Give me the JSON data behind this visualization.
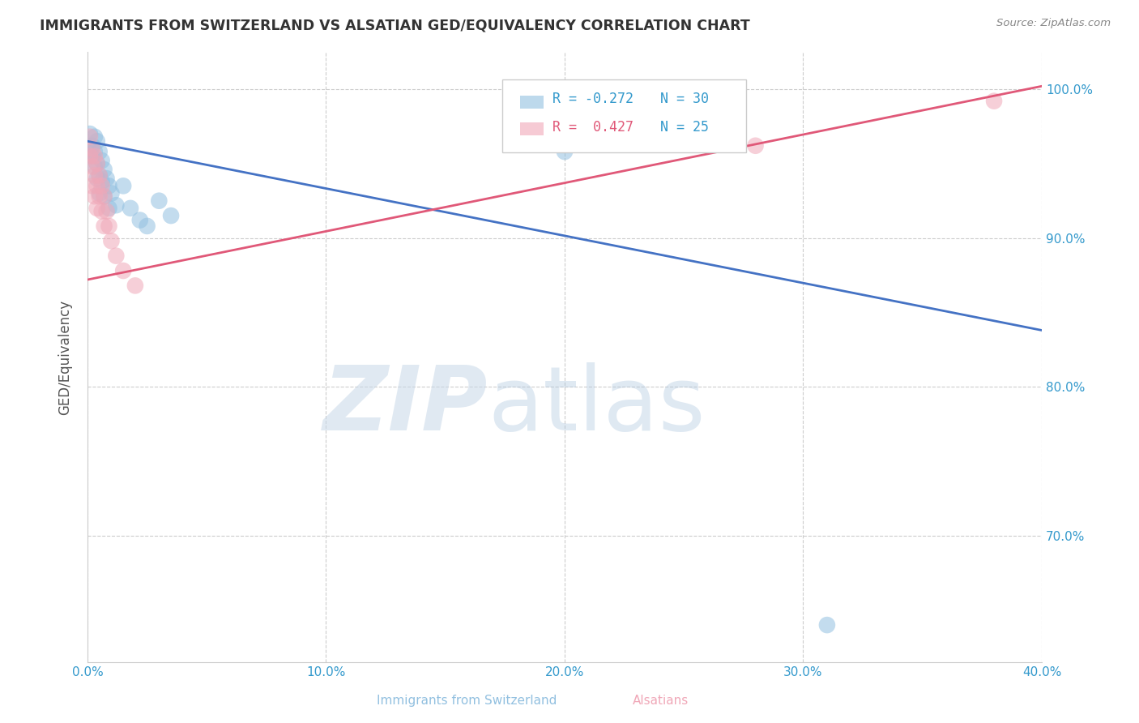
{
  "title": "IMMIGRANTS FROM SWITZERLAND VS ALSATIAN GED/EQUIVALENCY CORRELATION CHART",
  "source_text": "Source: ZipAtlas.com",
  "ylabel": "GED/Equivalency",
  "xlim": [
    0.0,
    0.4
  ],
  "ylim": [
    0.615,
    1.025
  ],
  "xtick_labels": [
    "0.0%",
    "",
    "10.0%",
    "",
    "20.0%",
    "",
    "30.0%",
    "",
    "40.0%"
  ],
  "xtick_values": [
    0.0,
    0.05,
    0.1,
    0.15,
    0.2,
    0.25,
    0.3,
    0.35,
    0.4
  ],
  "ytick_labels": [
    "100.0%",
    "90.0%",
    "80.0%",
    "70.0%"
  ],
  "ytick_values": [
    1.0,
    0.9,
    0.8,
    0.7
  ],
  "blue_color": "#92c0e0",
  "pink_color": "#f0a8b8",
  "blue_line_color": "#4472c4",
  "pink_line_color": "#e05878",
  "watermark_zip": "ZIP",
  "watermark_atlas": "atlas",
  "blue_scatter": [
    [
      0.001,
      0.97
    ],
    [
      0.001,
      0.958
    ],
    [
      0.002,
      0.962
    ],
    [
      0.002,
      0.955
    ],
    [
      0.003,
      0.968
    ],
    [
      0.003,
      0.958
    ],
    [
      0.003,
      0.948
    ],
    [
      0.004,
      0.965
    ],
    [
      0.004,
      0.95
    ],
    [
      0.004,
      0.94
    ],
    [
      0.005,
      0.958
    ],
    [
      0.005,
      0.942
    ],
    [
      0.005,
      0.93
    ],
    [
      0.006,
      0.952
    ],
    [
      0.006,
      0.938
    ],
    [
      0.007,
      0.946
    ],
    [
      0.007,
      0.928
    ],
    [
      0.008,
      0.94
    ],
    [
      0.009,
      0.935
    ],
    [
      0.009,
      0.92
    ],
    [
      0.01,
      0.93
    ],
    [
      0.012,
      0.922
    ],
    [
      0.015,
      0.935
    ],
    [
      0.018,
      0.92
    ],
    [
      0.022,
      0.912
    ],
    [
      0.025,
      0.908
    ],
    [
      0.03,
      0.925
    ],
    [
      0.035,
      0.915
    ],
    [
      0.2,
      0.958
    ],
    [
      0.31,
      0.64
    ]
  ],
  "pink_scatter": [
    [
      0.001,
      0.968
    ],
    [
      0.001,
      0.955
    ],
    [
      0.002,
      0.96
    ],
    [
      0.002,
      0.948
    ],
    [
      0.002,
      0.935
    ],
    [
      0.003,
      0.955
    ],
    [
      0.003,
      0.942
    ],
    [
      0.003,
      0.928
    ],
    [
      0.004,
      0.95
    ],
    [
      0.004,
      0.935
    ],
    [
      0.004,
      0.92
    ],
    [
      0.005,
      0.942
    ],
    [
      0.005,
      0.928
    ],
    [
      0.006,
      0.935
    ],
    [
      0.006,
      0.918
    ],
    [
      0.007,
      0.928
    ],
    [
      0.007,
      0.908
    ],
    [
      0.008,
      0.918
    ],
    [
      0.009,
      0.908
    ],
    [
      0.01,
      0.898
    ],
    [
      0.012,
      0.888
    ],
    [
      0.015,
      0.878
    ],
    [
      0.02,
      0.868
    ],
    [
      0.28,
      0.962
    ],
    [
      0.38,
      0.992
    ]
  ],
  "blue_line": [
    [
      0.0,
      0.965
    ],
    [
      0.4,
      0.838
    ]
  ],
  "pink_line": [
    [
      0.0,
      0.872
    ],
    [
      0.4,
      1.002
    ]
  ],
  "background_color": "#ffffff",
  "grid_color": "#cccccc",
  "legend_r1": "R = -0.272",
  "legend_n1": "N = 30",
  "legend_r2": "R =  0.427",
  "legend_n2": "N = 25"
}
